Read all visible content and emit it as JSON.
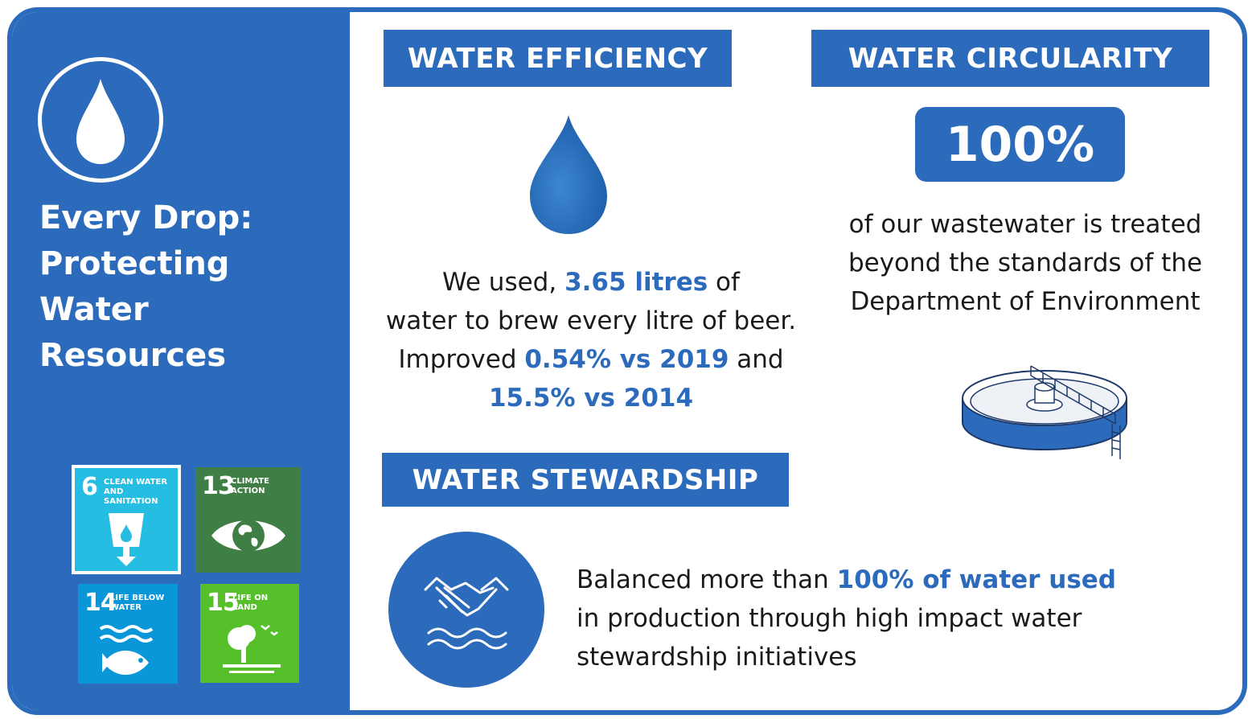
{
  "sidebar": {
    "title_lines": [
      "Every Drop:",
      "Protecting",
      "Water",
      "Resources"
    ],
    "icon": "water-drop-icon",
    "sdgs": [
      {
        "number": "6",
        "label": "CLEAN WATER AND SANITATION",
        "color": "#26bde2",
        "icon": "water-glass-icon"
      },
      {
        "number": "13",
        "label": "CLIMATE ACTION",
        "color": "#3f7e44",
        "icon": "eye-globe-icon"
      },
      {
        "number": "14",
        "label": "LIFE BELOW WATER",
        "color": "#0a97d9",
        "icon": "fish-icon"
      },
      {
        "number": "15",
        "label": "LIFE ON LAND",
        "color": "#56c02b",
        "icon": "tree-icon"
      }
    ]
  },
  "efficiency": {
    "header": "WATER EFFICIENCY",
    "icon": "water-drop-icon",
    "line1_pre": "We used, ",
    "line1_value": "3.65 litres",
    "line1_post": " of",
    "line2": "water to brew every litre of beer.",
    "line3_pre": "Improved ",
    "line3_value": "0.54% vs 2019",
    "line3_post": " and",
    "line4_value": "15.5% vs 2014"
  },
  "circularity": {
    "header": "WATER CIRCULARITY",
    "percent": "100%",
    "line1": "of our wastewater is treated",
    "line2": "beyond the standards of the",
    "line3": "Department of Environment",
    "icon": "treatment-tank-icon"
  },
  "stewardship": {
    "header": "WATER STEWARDSHIP",
    "icon": "handshake-water-icon",
    "line1_pre": "Balanced more than ",
    "line1_value": "100% of water used",
    "line2": "in production through high impact water",
    "line3": "stewardship initiatives"
  },
  "colors": {
    "brand_blue": "#2c6bbb",
    "white": "#ffffff"
  }
}
